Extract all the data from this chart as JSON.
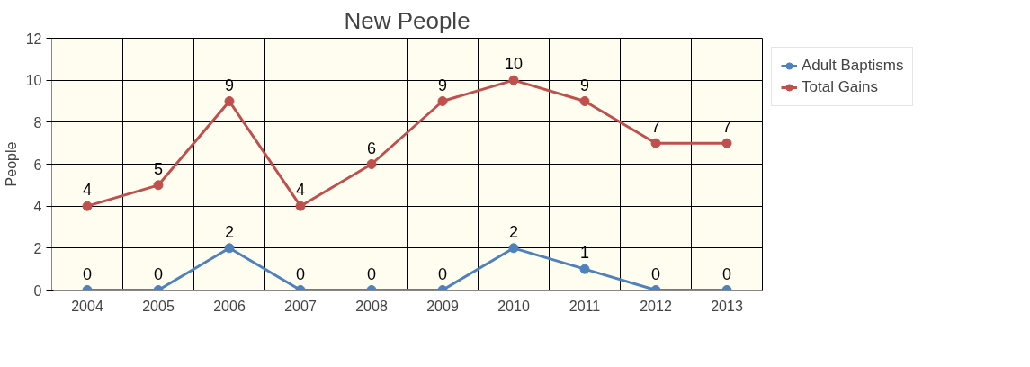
{
  "chart_data": {
    "type": "line",
    "title": "New People",
    "ylabel": "People",
    "categories": [
      "2004",
      "2005",
      "2006",
      "2007",
      "2008",
      "2009",
      "2010",
      "2011",
      "2012",
      "2013"
    ],
    "series": [
      {
        "name": "Adult Baptisms",
        "color": "#4f81bd",
        "values": [
          0,
          0,
          2,
          0,
          0,
          0,
          2,
          1,
          0,
          0
        ]
      },
      {
        "name": "Total Gains",
        "color": "#c0504d",
        "values": [
          4,
          5,
          9,
          4,
          6,
          9,
          10,
          9,
          7,
          7
        ]
      }
    ],
    "ylim": [
      0,
      12
    ],
    "yticks": [
      0,
      2,
      4,
      6,
      8,
      10,
      12
    ],
    "grid": true,
    "legend": "right",
    "data_labels": true,
    "marker": "circle",
    "line_style": "solid"
  }
}
